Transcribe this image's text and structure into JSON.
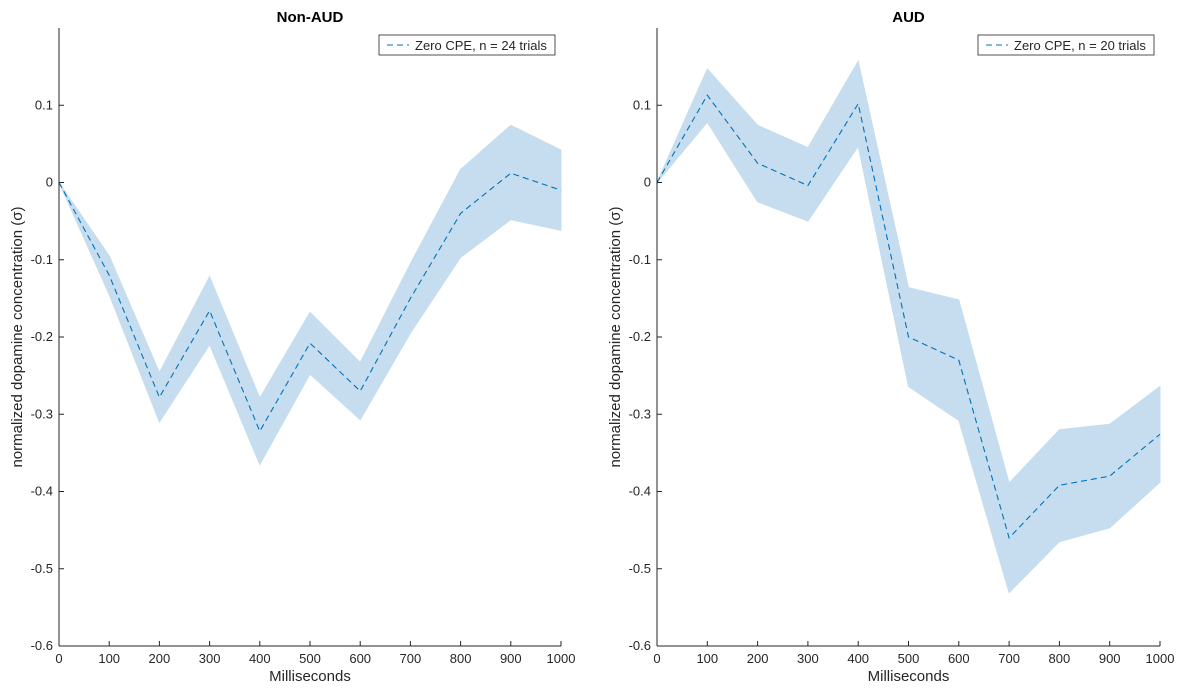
{
  "colors": {
    "line": "#0072bd",
    "band": "#c5ddee",
    "axis": "#262626",
    "legend_border": "#262626"
  },
  "chart_data": [
    {
      "type": "line",
      "title": "Non-AUD",
      "xlabel": "Milliseconds",
      "ylabel": "normalized dopamine concentration (σ)",
      "xlim": [
        0,
        1000
      ],
      "ylim": [
        -0.6,
        0.2
      ],
      "xticks": [
        0,
        100,
        200,
        300,
        400,
        500,
        600,
        700,
        800,
        900,
        1000
      ],
      "yticks": [
        -0.6,
        -0.5,
        -0.4,
        -0.3,
        -0.2,
        -0.1,
        0,
        0.1
      ],
      "xtick_labels": [
        "0",
        "100",
        "200",
        "300",
        "400",
        "500",
        "600",
        "700",
        "800",
        "900",
        "1000"
      ],
      "ytick_labels": [
        "-0.6",
        "-0.5",
        "-0.4",
        "-0.3",
        "-0.2",
        "-0.1",
        "0",
        "0.1"
      ],
      "grid": false,
      "legend_position": "top-right",
      "series": [
        {
          "name": "Zero CPE, n = 24 trials",
          "style": "dashed",
          "x": [
            0,
            100,
            200,
            300,
            400,
            500,
            600,
            700,
            800,
            900,
            1000
          ],
          "y": [
            0,
            -0.12,
            -0.278,
            -0.166,
            -0.322,
            -0.208,
            -0.27,
            -0.15,
            -0.04,
            0.012,
            -0.01
          ],
          "upper": [
            0,
            -0.095,
            -0.246,
            -0.122,
            -0.279,
            -0.168,
            -0.233,
            -0.105,
            0.017,
            0.074,
            0.042
          ],
          "lower": [
            0,
            -0.145,
            -0.31,
            -0.21,
            -0.365,
            -0.248,
            -0.307,
            -0.195,
            -0.097,
            -0.048,
            -0.062
          ]
        }
      ]
    },
    {
      "type": "line",
      "title": "AUD",
      "xlabel": "Milliseconds",
      "ylabel": "normalized dopamine concentration (σ)",
      "xlim": [
        0,
        1000
      ],
      "ylim": [
        -0.6,
        0.2
      ],
      "xticks": [
        0,
        100,
        200,
        300,
        400,
        500,
        600,
        700,
        800,
        900,
        1000
      ],
      "yticks": [
        -0.6,
        -0.5,
        -0.4,
        -0.3,
        -0.2,
        -0.1,
        0,
        0.1
      ],
      "xtick_labels": [
        "0",
        "100",
        "200",
        "300",
        "400",
        "500",
        "600",
        "700",
        "800",
        "900",
        "1000"
      ],
      "ytick_labels": [
        "-0.6",
        "-0.5",
        "-0.4",
        "-0.3",
        "-0.2",
        "-0.1",
        "0",
        "0.1"
      ],
      "grid": false,
      "legend_position": "top-right",
      "series": [
        {
          "name": "Zero CPE, n = 20 trials",
          "style": "dashed",
          "x": [
            0,
            100,
            200,
            300,
            400,
            500,
            600,
            700,
            800,
            900,
            1000
          ],
          "y": [
            0,
            0.113,
            0.025,
            -0.004,
            0.102,
            -0.2,
            -0.23,
            -0.46,
            -0.392,
            -0.38,
            -0.326
          ],
          "upper": [
            0,
            0.147,
            0.074,
            0.045,
            0.157,
            -0.136,
            -0.152,
            -0.389,
            -0.32,
            -0.313,
            -0.264
          ],
          "lower": [
            0,
            0.078,
            -0.025,
            -0.05,
            0.047,
            -0.264,
            -0.308,
            -0.531,
            -0.465,
            -0.447,
            -0.388
          ]
        }
      ]
    }
  ]
}
